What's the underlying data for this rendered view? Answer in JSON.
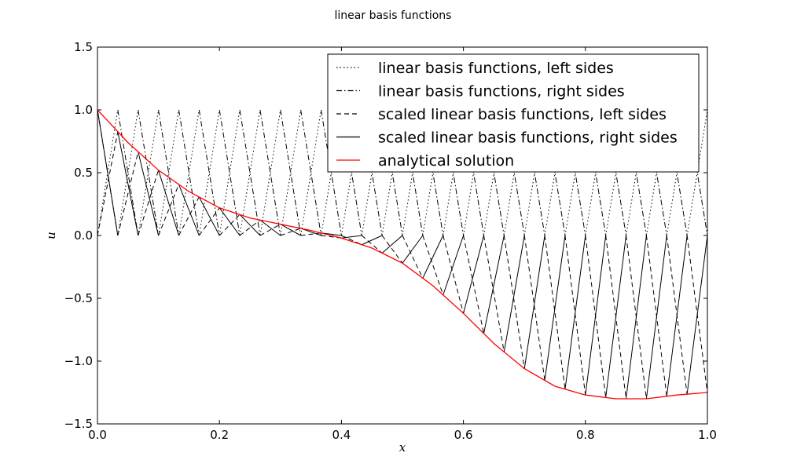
{
  "chart_data": {
    "type": "line",
    "title": "linear basis functions",
    "xlabel": "x",
    "ylabel": "u",
    "xlim": [
      0.0,
      1.0
    ],
    "ylim": [
      -1.5,
      1.5
    ],
    "xticks": [
      "0.0",
      "0.2",
      "0.4",
      "0.6",
      "0.8",
      "1.0"
    ],
    "yticks": [
      "1.5",
      "1.0",
      "0.5",
      "0.0",
      "−0.5",
      "−1.0",
      "−1.5"
    ],
    "grid": false,
    "legend_position": "top-right",
    "n_elements": 30,
    "series": [
      {
        "name": "linear basis functions, left sides",
        "style": "dotted",
        "color": "#000000"
      },
      {
        "name": "linear basis functions, right sides",
        "style": "dashdot",
        "color": "#000000"
      },
      {
        "name": "scaled linear basis functions, left sides",
        "style": "dashed",
        "color": "#000000"
      },
      {
        "name": "scaled linear basis functions, right sides",
        "style": "solid",
        "color": "#000000"
      },
      {
        "name": "analytical solution",
        "style": "solid",
        "color": "#ff0000"
      }
    ],
    "analytical_solution": {
      "x": [
        0.0,
        0.05,
        0.1,
        0.15,
        0.2,
        0.25,
        0.3,
        0.35,
        0.4,
        0.45,
        0.5,
        0.55,
        0.6,
        0.65,
        0.7,
        0.75,
        0.8,
        0.85,
        0.9,
        0.95,
        1.0
      ],
      "y": [
        1.0,
        0.74,
        0.52,
        0.35,
        0.22,
        0.14,
        0.09,
        0.04,
        -0.02,
        -0.1,
        -0.22,
        -0.4,
        -0.62,
        -0.86,
        -1.06,
        -1.2,
        -1.27,
        -1.3,
        -1.3,
        -1.27,
        -1.25
      ]
    }
  }
}
